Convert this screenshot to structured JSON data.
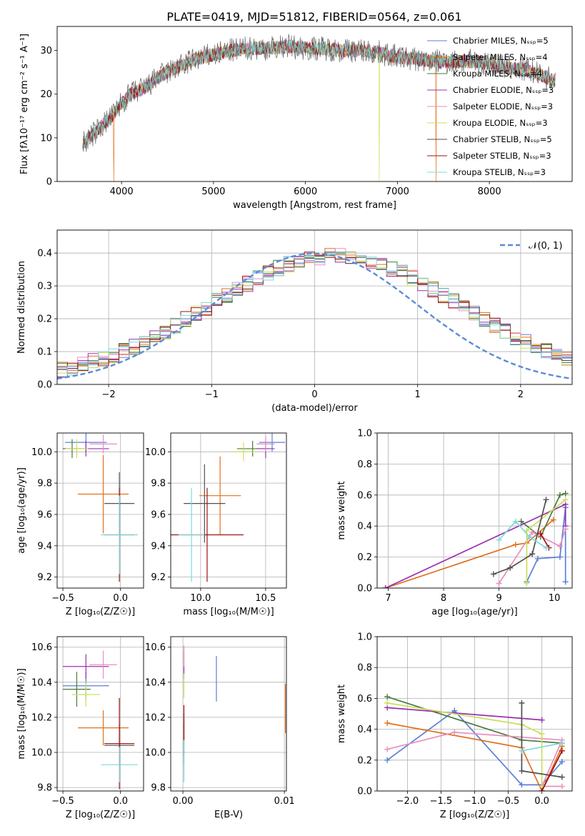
{
  "figure": {
    "title": "PLATE=0419, MJD=51812, FIBERID=0564, z=0.061",
    "series_colors": [
      "#5b7fd6",
      "#e0701c",
      "#4a7a3a",
      "#9b30b0",
      "#e88fbf",
      "#c8e05a",
      "#505050",
      "#a01010",
      "#7fd8d8"
    ]
  },
  "chart_data": [
    {
      "id": "spectrum",
      "type": "line",
      "xlabel": "wavelength [Angstrom, rest frame]",
      "ylabel": "Flux [fλ10⁻¹⁷ erg cm⁻² s⁻¹ A⁻¹]",
      "xlim": [
        3300,
        8900
      ],
      "ylim": [
        0,
        35.5
      ],
      "xticks": [
        "4000",
        "5000",
        "6000",
        "7000",
        "8000"
      ],
      "yticks": [
        "0",
        "10",
        "20",
        "30"
      ],
      "legend_position": "upper-right",
      "legend": [
        "Chabrier MILES, Nₛₛₚ=5",
        "Salpeter MILES, Nₛₛₚ=4",
        "Kroupa MILES, Nₛₛₚ=4",
        "Chabrier ELODIE, Nₛₛₚ=3",
        "Salpeter ELODIE, Nₛₛₚ=3",
        "Kroupa ELODIE, Nₛₛₚ=3",
        "Chabrier STELIB, Nₛₛₚ=5",
        "Salpeter STELIB, Nₛₛₚ=3",
        "Kroupa STELIB, Nₛₛₚ=3"
      ],
      "continuum": {
        "wavelength": [
          3600,
          3700,
          3800,
          3900,
          4000,
          4100,
          4200,
          4300,
          4400,
          4500,
          4600,
          4700,
          4800,
          5000,
          5200,
          5400,
          5600,
          5800,
          6000,
          6200,
          6400,
          6600,
          6800,
          7000,
          7200,
          7400,
          7600,
          7800,
          8000,
          8200,
          8400,
          8600,
          8700
        ],
        "flux": [
          9,
          11,
          13,
          15,
          18,
          20,
          21,
          22,
          24,
          25,
          26,
          27,
          28,
          29,
          30,
          30.5,
          30.5,
          31,
          30.5,
          30.5,
          30,
          30,
          29.5,
          28.5,
          28,
          27.5,
          27.5,
          27.5,
          27,
          26,
          25.5,
          24,
          23
        ]
      },
      "drops": [
        {
          "x": 3915,
          "to": 0
        },
        {
          "x": 6800,
          "to": 0
        },
        {
          "x": 7420,
          "to": 0
        }
      ]
    },
    {
      "id": "residual-histogram",
      "type": "histogram",
      "xlabel": "(data-model)/error",
      "ylabel": "Normed distribution",
      "xlim": [
        -2.5,
        2.5
      ],
      "ylim": [
        0,
        0.47
      ],
      "xticks": [
        "−2",
        "−1",
        "0",
        "1",
        "2"
      ],
      "yticks": [
        "0.0",
        "0.1",
        "0.2",
        "0.3",
        "0.4"
      ],
      "grid": true,
      "reference_curve": {
        "label": "𝒩(0, 1)",
        "mean": 0,
        "sigma": 1,
        "style": "dashed"
      },
      "legend_position": "upper-right",
      "bin_width": 0.1
    },
    {
      "id": "age-vs-Z",
      "type": "errorbar",
      "xlabel": "Z [log₁₀(Z/Z☉)]",
      "ylabel": "age  [log₁₀(age/yr)]",
      "xlim": [
        -0.55,
        0.2
      ],
      "ylim": [
        9.13,
        10.12
      ],
      "xticks": [
        "−0.5",
        "0.0"
      ],
      "yticks": [
        "9.2",
        "9.4",
        "9.6",
        "9.8",
        "10.0"
      ],
      "grid": true,
      "points": [
        {
          "x": -0.3,
          "y": 10.06,
          "xerr": 0.18,
          "yerr": 0.06
        },
        {
          "x": -0.15,
          "y": 9.73,
          "xerr": 0.22,
          "yerr": 0.25
        },
        {
          "x": -0.42,
          "y": 10.02,
          "xerr": 0.08,
          "yerr": 0.06
        },
        {
          "x": -0.3,
          "y": 10.02,
          "xerr": 0.2,
          "yerr": 0.05
        },
        {
          "x": -0.15,
          "y": 10.05,
          "xerr": 0.12,
          "yerr": 0.06
        },
        {
          "x": -0.38,
          "y": 10.02,
          "xerr": 0.1,
          "yerr": 0.06
        },
        {
          "x": -0.01,
          "y": 9.67,
          "xerr": 0.13,
          "yerr": 0.2
        },
        {
          "x": -0.01,
          "y": 9.47,
          "xerr": 0.13,
          "yerr": 0.3
        },
        {
          "x": -0.01,
          "y": 9.47,
          "xerr": 0.16,
          "yerr": 0.25
        }
      ]
    },
    {
      "id": "age-vs-mass",
      "type": "errorbar",
      "xlabel": "mass [log₁₀(M/M☉)]",
      "ylabel": "",
      "xlim": [
        9.77,
        10.66
      ],
      "ylim": [
        9.13,
        10.12
      ],
      "xticks": [
        "10.0",
        "10.5"
      ],
      "yticks": [
        "9.2",
        "9.4",
        "9.6",
        "9.8",
        "10.0"
      ],
      "grid": true,
      "points": [
        {
          "x": 10.55,
          "y": 10.06,
          "xerr": 0.1,
          "yerr": 0.06
        },
        {
          "x": 10.15,
          "y": 9.72,
          "xerr": 0.16,
          "yerr": 0.25
        },
        {
          "x": 10.4,
          "y": 10.02,
          "xerr": 0.12,
          "yerr": 0.05
        },
        {
          "x": 10.5,
          "y": 10.02,
          "xerr": 0.07,
          "yerr": 0.06
        },
        {
          "x": 10.5,
          "y": 10.05,
          "xerr": 0.07,
          "yerr": 0.05
        },
        {
          "x": 10.33,
          "y": 10.0,
          "xerr": 0.1,
          "yerr": 0.06
        },
        {
          "x": 10.03,
          "y": 9.67,
          "xerr": 0.16,
          "yerr": 0.25
        },
        {
          "x": 10.05,
          "y": 9.47,
          "xerr": 0.28,
          "yerr": 0.3
        },
        {
          "x": 9.93,
          "y": 9.47,
          "xerr": 0.1,
          "yerr": 0.3
        }
      ]
    },
    {
      "id": "mass-weight-vs-age",
      "type": "line",
      "xlabel": "age  [log₁₀(age/yr)]",
      "ylabel": "mass weight",
      "xlim": [
        6.8,
        10.32
      ],
      "ylim": [
        0,
        1.0
      ],
      "xticks": [
        "7",
        "8",
        "9",
        "10"
      ],
      "yticks": [
        "0.0",
        "0.2",
        "0.4",
        "0.6",
        "0.8",
        "1.0"
      ],
      "grid": true,
      "series": [
        {
          "x": [
            9.5,
            9.7,
            10.1,
            10.2,
            10.2
          ],
          "y": [
            0.04,
            0.19,
            0.2,
            0.52,
            0.04
          ]
        },
        {
          "x": [
            6.95,
            9.3,
            9.5,
            9.98
          ],
          "y": [
            0.0,
            0.28,
            0.29,
            0.44
          ]
        },
        {
          "x": [
            9.4,
            9.75,
            10.1,
            10.2
          ],
          "y": [
            0.43,
            0.33,
            0.6,
            0.61
          ]
        },
        {
          "x": [
            6.95,
            10.2,
            10.2
          ],
          "y": [
            0.0,
            0.54,
            0.4
          ]
        },
        {
          "x": [
            9.0,
            9.6,
            10.1,
            10.2
          ],
          "y": [
            0.03,
            0.36,
            0.27,
            0.38
          ]
        },
        {
          "x": [
            9.5,
            9.5,
            10.2
          ],
          "y": [
            0.03,
            0.37,
            0.57
          ]
        },
        {
          "x": [
            8.9,
            9.2,
            9.6,
            9.85
          ],
          "y": [
            0.09,
            0.13,
            0.22,
            0.57
          ]
        },
        {
          "x": [
            9.75,
            9.9
          ],
          "y": [
            0.35,
            0.26
          ]
        },
        {
          "x": [
            9.0,
            9.3,
            9.55,
            9.85
          ],
          "y": [
            0.31,
            0.43,
            0.33,
            0.26
          ]
        }
      ]
    },
    {
      "id": "mass-vs-Z",
      "type": "errorbar",
      "xlabel": "Z [log₁₀(Z/Z☉)]",
      "ylabel": "mass [log₁₀(M/M☉)]",
      "xlim": [
        -0.55,
        0.2
      ],
      "ylim": [
        9.78,
        10.66
      ],
      "xticks": [
        "−0.5",
        "0.0"
      ],
      "yticks": [
        "9.8",
        "10.0",
        "10.2",
        "10.4",
        "10.6"
      ],
      "grid": true,
      "points": [
        {
          "x": -0.3,
          "y": 10.38,
          "xerr": 0.2,
          "yerr": 0.08
        },
        {
          "x": -0.15,
          "y": 10.14,
          "xerr": 0.22,
          "yerr": 0.1
        },
        {
          "x": -0.38,
          "y": 10.36,
          "xerr": 0.12,
          "yerr": 0.1
        },
        {
          "x": -0.3,
          "y": 10.49,
          "xerr": 0.2,
          "yerr": 0.07
        },
        {
          "x": -0.15,
          "y": 10.5,
          "xerr": 0.12,
          "yerr": 0.08
        },
        {
          "x": -0.3,
          "y": 10.33,
          "xerr": 0.12,
          "yerr": 0.07
        },
        {
          "x": -0.01,
          "y": 10.04,
          "xerr": 0.13,
          "yerr": 0.12
        },
        {
          "x": -0.01,
          "y": 10.05,
          "xerr": 0.13,
          "yerr": 0.26
        },
        {
          "x": -0.01,
          "y": 9.93,
          "xerr": 0.16,
          "yerr": 0.1
        }
      ]
    },
    {
      "id": "mass-vs-EBV",
      "type": "errorbar",
      "xlabel": "E(B-V)",
      "ylabel": "",
      "xlim": [
        -0.0012,
        0.0102
      ],
      "ylim": [
        9.78,
        10.66
      ],
      "xticks": [
        "0.00",
        "0.01"
      ],
      "yticks": [
        "9.8",
        "10.0",
        "10.2",
        "10.4",
        "10.6"
      ],
      "grid": true,
      "points": [
        {
          "x": 0.0033,
          "y": 10.42,
          "xerr": 0,
          "yerr": 0.13
        },
        {
          "x": 0.0101,
          "y": 10.25,
          "xerr": 0,
          "yerr": 0.14
        },
        {
          "x": 0.0001,
          "y": 10.1,
          "xerr": 0,
          "yerr": 0.12
        },
        {
          "x": 0.0001,
          "y": 10.5,
          "xerr": 0,
          "yerr": 0.08
        },
        {
          "x": 0.0001,
          "y": 10.55,
          "xerr": 0,
          "yerr": 0.06
        },
        {
          "x": 0.0001,
          "y": 10.38,
          "xerr": 0,
          "yerr": 0.07
        },
        {
          "x": 0.0001,
          "y": 10.05,
          "xerr": 0,
          "yerr": 0.12
        },
        {
          "x": 0.0001,
          "y": 10.17,
          "xerr": 0,
          "yerr": 0.1
        },
        {
          "x": 0.0001,
          "y": 9.95,
          "xerr": 0,
          "yerr": 0.12
        }
      ]
    },
    {
      "id": "mass-weight-vs-Z",
      "type": "line",
      "xlabel": "Z [log₁₀(Z/Z☉)]",
      "ylabel": "mass weight",
      "xlim": [
        -2.45,
        0.45
      ],
      "ylim": [
        0,
        1.0
      ],
      "xticks": [
        "−2.0",
        "−1.5",
        "−1.0",
        "−0.5",
        "0.0"
      ],
      "yticks": [
        "0.0",
        "0.2",
        "0.4",
        "0.6",
        "0.8",
        "1.0"
      ],
      "grid": true,
      "series": [
        {
          "x": [
            -2.3,
            -1.3,
            -0.3,
            0.0,
            0.3
          ],
          "y": [
            0.2,
            0.52,
            0.04,
            0.04,
            0.19
          ]
        },
        {
          "x": [
            -2.3,
            -0.3,
            0.0,
            0.3
          ],
          "y": [
            0.44,
            0.28,
            0.0,
            0.29
          ]
        },
        {
          "x": [
            -2.3,
            -0.3,
            0.3
          ],
          "y": [
            0.61,
            0.33,
            0.31
          ]
        },
        {
          "x": [
            -2.3,
            0.0
          ],
          "y": [
            0.54,
            0.46
          ]
        },
        {
          "x": [
            -2.3,
            -1.3,
            0.3,
            0.0,
            0.3
          ],
          "y": [
            0.27,
            0.38,
            0.33,
            0.03,
            0.03
          ]
        },
        {
          "x": [
            -2.3,
            -0.3,
            0.0,
            0.0
          ],
          "y": [
            0.57,
            0.43,
            0.37,
            0.03
          ]
        },
        {
          "x": [
            -0.3,
            -0.3,
            0.3
          ],
          "y": [
            0.57,
            0.13,
            0.09
          ]
        },
        {
          "x": [
            0.0,
            0.3
          ],
          "y": [
            0.0,
            0.26
          ]
        },
        {
          "x": [
            -0.3,
            0.3
          ],
          "y": [
            0.26,
            0.31
          ]
        }
      ]
    }
  ]
}
